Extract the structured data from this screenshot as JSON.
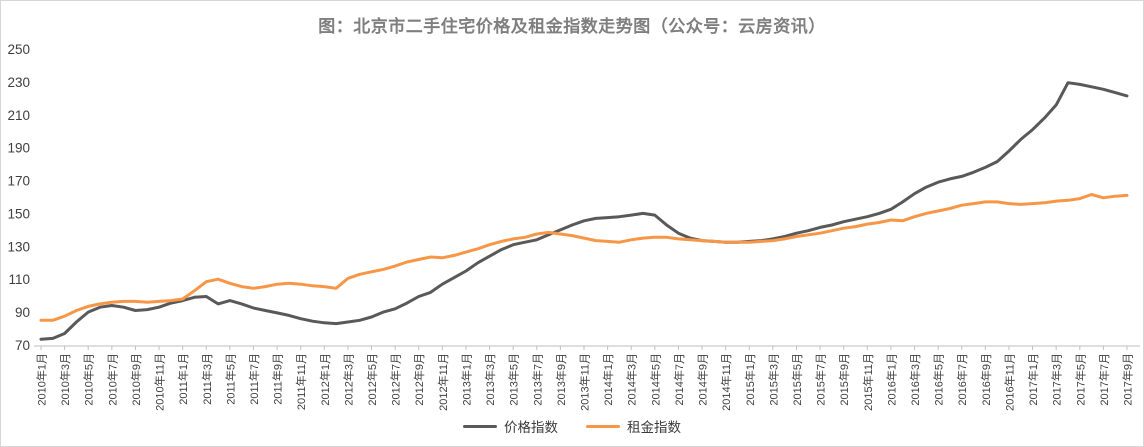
{
  "title": "图：北京市二手住宅价格及租金指数走势图（公众号：云房资讯）",
  "colors": {
    "title": "#7f7f7f",
    "axis_line": "#bfbfbf",
    "tick_label": "#404040",
    "price": "#595959",
    "rent": "#f79646",
    "frame_border": "#d6d6d6"
  },
  "legend": [
    {
      "label": "价格指数",
      "color_key": "price"
    },
    {
      "label": "租金指数",
      "color_key": "rent"
    }
  ],
  "chart_data": {
    "type": "line",
    "title": "图：北京市二手住宅价格及租金指数走势图（公众号：云房资讯）",
    "xlabel": "",
    "ylabel": "",
    "ylim": [
      70,
      250
    ],
    "y_ticks": [
      70,
      90,
      110,
      130,
      150,
      170,
      190,
      210,
      230,
      250
    ],
    "grid": false,
    "legend_position": "bottom",
    "x_months_start": "2010年1月",
    "x_months_end": "2017年9月",
    "x_tick_labels": [
      "2010年1月",
      "2010年3月",
      "2010年5月",
      "2010年7月",
      "2010年9月",
      "2010年11月",
      "2011年1月",
      "2011年3月",
      "2011年5月",
      "2011年7月",
      "2011年9月",
      "2011年11月",
      "2012年1月",
      "2012年3月",
      "2012年5月",
      "2012年7月",
      "2012年9月",
      "2012年11月",
      "2013年1月",
      "2013年3月",
      "2013年5月",
      "2013年7月",
      "2013年9月",
      "2013年11月",
      "2014年1月",
      "2014年3月",
      "2014年5月",
      "2014年7月",
      "2014年9月",
      "2014年11月",
      "2015年1月",
      "2015年3月",
      "2015年5月",
      "2015年7月",
      "2015年9月",
      "2015年11月",
      "2016年1月",
      "2016年3月",
      "2016年5月",
      "2016年7月",
      "2016年9月",
      "2016年11月",
      "2017年1月",
      "2017年3月",
      "2017年5月",
      "2017年7月",
      "2017年9月"
    ],
    "x_tick_month_step": 2,
    "series": [
      {
        "name": "价格指数",
        "color": "#595959",
        "values": [
          73.5,
          74,
          77,
          84,
          90,
          93,
          94,
          93,
          91,
          91.5,
          93,
          95.5,
          97,
          99,
          99.5,
          95,
          97,
          95,
          92.5,
          91,
          89.5,
          88,
          86,
          84.5,
          83.5,
          83,
          84,
          85,
          87,
          90,
          92,
          95.5,
          99.5,
          102,
          107,
          111,
          115,
          120,
          124,
          128,
          131,
          132.5,
          134,
          137,
          140,
          143,
          145.5,
          147,
          147.5,
          148,
          149,
          150,
          149,
          143,
          138,
          135,
          133.5,
          133,
          132.5,
          132.5,
          133,
          133.5,
          134.5,
          136,
          138,
          139.5,
          141.5,
          143,
          145,
          146.5,
          148,
          150,
          152.5,
          157,
          162,
          166,
          169,
          171,
          172.5,
          175,
          178,
          181.5,
          188,
          195,
          201,
          208,
          216,
          229.5,
          228.5,
          227,
          225.5,
          223.5,
          221.5
        ]
      },
      {
        "name": "租金指数",
        "color": "#f79646",
        "values": [
          85,
          85,
          87.5,
          91,
          93.5,
          95,
          96,
          96.5,
          96.5,
          96,
          96.5,
          97,
          98,
          103,
          108.5,
          110,
          107.5,
          105.5,
          104.5,
          105.5,
          107,
          107.5,
          107,
          106,
          105.5,
          104.5,
          110.5,
          113,
          114.5,
          116,
          118,
          120.5,
          122,
          123.5,
          123,
          124.5,
          126.5,
          128.5,
          131,
          133,
          134.5,
          135.5,
          137.5,
          138.5,
          137.5,
          136.5,
          135,
          133.5,
          133,
          132.5,
          134,
          135,
          135.5,
          135.5,
          134.5,
          134,
          133.5,
          133,
          132.5,
          132.5,
          132.5,
          133,
          133.5,
          134.5,
          136,
          137,
          138,
          139.5,
          141,
          142,
          143.5,
          144.5,
          146,
          145.5,
          148,
          150,
          151.5,
          153,
          155,
          156,
          157,
          157,
          156,
          155.5,
          156,
          156.5,
          157.5,
          158,
          159,
          161.5,
          159.5,
          160.5,
          161
        ]
      }
    ]
  }
}
